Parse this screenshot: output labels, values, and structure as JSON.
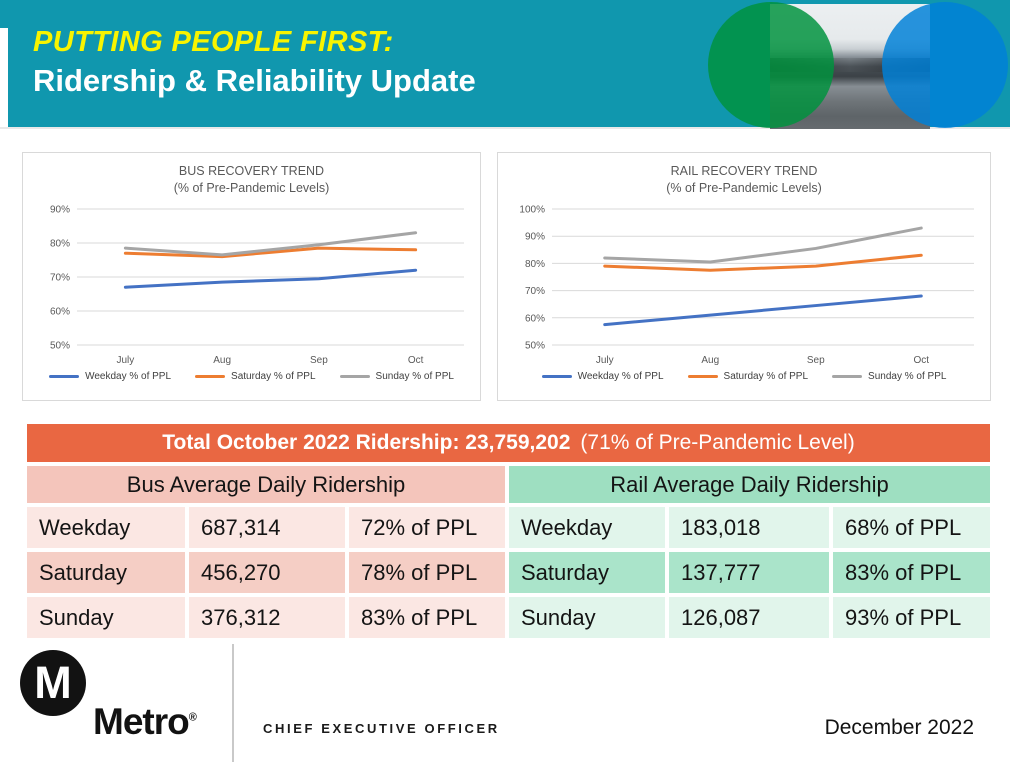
{
  "header": {
    "kicker": "PUTTING PEOPLE FIRST:",
    "title": "Ridership & Reliability Update",
    "colors": {
      "background": "#1097AE",
      "kicker": "#F8F400",
      "title": "#FFFFFF"
    },
    "collage": {
      "circle_left_color": "#00923E",
      "circle_right_color": "#0081D8"
    }
  },
  "chart_data": [
    {
      "type": "line",
      "title": "BUS RECOVERY TREND",
      "subtitle": "(% of Pre-Pandemic Levels)",
      "categories": [
        "July",
        "Aug",
        "Sep",
        "Oct"
      ],
      "series": [
        {
          "name": "Weekday % of PPL",
          "color": "#4472C4",
          "values": [
            67,
            68.5,
            69.5,
            72
          ]
        },
        {
          "name": "Saturday % of PPL",
          "color": "#ED7D31",
          "values": [
            77,
            76,
            78.5,
            78
          ]
        },
        {
          "name": "Sunday % of PPL",
          "color": "#A5A5A5",
          "values": [
            78.5,
            76.5,
            79.5,
            83
          ]
        }
      ],
      "xlabel": "",
      "ylabel": "",
      "ylim": [
        50,
        90
      ],
      "ytick_step": 10,
      "ytick_labels": [
        "90%",
        "80%",
        "70%",
        "60%",
        "50%"
      ],
      "grid": true,
      "legend_position": "bottom"
    },
    {
      "type": "line",
      "title": "RAIL RECOVERY TREND",
      "subtitle": "(% of Pre-Pandemic Levels)",
      "categories": [
        "July",
        "Aug",
        "Sep",
        "Oct"
      ],
      "series": [
        {
          "name": "Weekday % of PPL",
          "color": "#4472C4",
          "values": [
            57.5,
            61,
            64.5,
            68
          ]
        },
        {
          "name": "Saturday % of PPL",
          "color": "#ED7D31",
          "values": [
            79,
            77.5,
            79,
            83
          ]
        },
        {
          "name": "Sunday % of PPL",
          "color": "#A5A5A5",
          "values": [
            82,
            80.5,
            85.5,
            93
          ]
        }
      ],
      "xlabel": "",
      "ylabel": "",
      "ylim": [
        50,
        100
      ],
      "ytick_step": 10,
      "ytick_labels": [
        "100%",
        "90%",
        "80%",
        "70%",
        "60%",
        "50%"
      ],
      "grid": true,
      "legend_position": "bottom"
    }
  ],
  "banner": {
    "bold_text": "Total October 2022 Ridership: 23,759,202",
    "normal_text": "(71% of Pre-Pandemic Level)",
    "background": "#E96742"
  },
  "tables": [
    {
      "id": "bus",
      "title": "Bus Average Daily Ridership",
      "colors": {
        "header": "#F4C5BB",
        "row_light": "#FBE7E3",
        "row_dark": "#F5CEC5"
      },
      "rows": [
        [
          "Weekday",
          "687,314",
          "72% of PPL"
        ],
        [
          "Saturday",
          "456,270",
          "78% of PPL"
        ],
        [
          "Sunday",
          "376,312",
          "83% of PPL"
        ]
      ]
    },
    {
      "id": "rail",
      "title": "Rail Average Daily Ridership",
      "colors": {
        "header": "#9EDFC1",
        "row_light": "#E1F5EB",
        "row_dark": "#AAE4CA"
      },
      "rows": [
        [
          "Weekday",
          "183,018",
          "68% of PPL"
        ],
        [
          "Saturday",
          "137,777",
          "83% of PPL"
        ],
        [
          "Sunday",
          "126,087",
          "93% of PPL"
        ]
      ]
    }
  ],
  "footer": {
    "logo_mark": "M",
    "logo_text": "Metro",
    "registered": "®",
    "office": "CHIEF EXECUTIVE OFFICER",
    "date": "December 2022"
  }
}
